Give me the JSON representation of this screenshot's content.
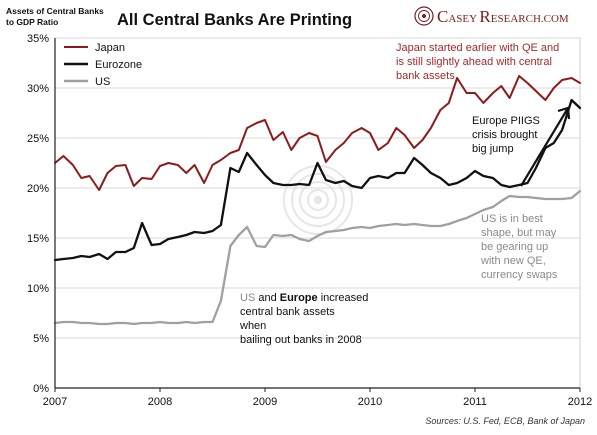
{
  "header": {
    "ylabel_line1": "Assets of Central Banks",
    "ylabel_line2": "to GDP Ratio",
    "title": "All Central Banks Are Printing",
    "brand": {
      "logo_glyph": "C",
      "name_part1": "ASEY ",
      "name_part2": "R",
      "name_part3": "ESEARCH.COM",
      "color": "#7a1f1f"
    },
    "logo_icon": "seal-logo-icon"
  },
  "colors": {
    "japan": "#8e1b1b",
    "eurozone": "#111111",
    "us": "#a0a0a0",
    "grid": "#d9d9d9",
    "axis": "#222222",
    "annotation_japan": "#a52a2a",
    "annotation_us": "#8a8a8a"
  },
  "chart_data": {
    "type": "line",
    "ylabel": "Assets of Central Banks to GDP Ratio",
    "xlim": [
      2007,
      2012
    ],
    "ylim": [
      0,
      35
    ],
    "xticks": [
      "2007",
      "2008",
      "2009",
      "2010",
      "2011",
      "2012"
    ],
    "yticks": [
      "0%",
      "5%",
      "10%",
      "15%",
      "20%",
      "25%",
      "30%",
      "35%"
    ],
    "grid": "horizontal",
    "legend_position": "top-left",
    "series": [
      {
        "name": "Japan",
        "color": "#8e1b1b",
        "x": [
          2007.0,
          2007.08,
          2007.17,
          2007.25,
          2007.33,
          2007.42,
          2007.5,
          2007.58,
          2007.67,
          2007.75,
          2007.83,
          2007.92,
          2008.0,
          2008.08,
          2008.17,
          2008.25,
          2008.33,
          2008.42,
          2008.5,
          2008.58,
          2008.67,
          2008.75,
          2008.83,
          2008.92,
          2009.0,
          2009.08,
          2009.17,
          2009.25,
          2009.33,
          2009.42,
          2009.5,
          2009.58,
          2009.67,
          2009.75,
          2009.83,
          2009.92,
          2010.0,
          2010.08,
          2010.17,
          2010.25,
          2010.33,
          2010.42,
          2010.5,
          2010.58,
          2010.67,
          2010.75,
          2010.83,
          2010.92,
          2011.0,
          2011.08,
          2011.17,
          2011.25,
          2011.33,
          2011.42,
          2011.5,
          2011.58,
          2011.67,
          2011.75,
          2011.83,
          2011.92,
          2012.0
        ],
        "values": [
          22.5,
          23.2,
          22.3,
          21.0,
          21.2,
          19.8,
          21.5,
          22.2,
          22.3,
          20.2,
          21.0,
          20.9,
          22.2,
          22.5,
          22.3,
          21.5,
          22.3,
          20.5,
          22.3,
          22.8,
          23.5,
          23.8,
          26.0,
          26.5,
          26.8,
          24.8,
          25.6,
          23.8,
          25.0,
          25.5,
          25.2,
          22.6,
          23.8,
          24.5,
          25.5,
          26.0,
          25.5,
          23.8,
          24.5,
          26.0,
          25.3,
          24.0,
          24.8,
          26.0,
          27.8,
          28.5,
          31.0,
          29.5,
          29.5,
          28.5,
          29.5,
          30.2,
          29.0,
          31.2,
          30.5,
          29.7,
          28.8,
          30.0,
          30.8,
          31.0,
          30.5
        ]
      },
      {
        "name": "Eurozone",
        "color": "#111111",
        "x": [
          2007.0,
          2007.08,
          2007.17,
          2007.25,
          2007.33,
          2007.42,
          2007.5,
          2007.58,
          2007.67,
          2007.75,
          2007.83,
          2007.92,
          2008.0,
          2008.08,
          2008.17,
          2008.25,
          2008.33,
          2008.42,
          2008.5,
          2008.58,
          2008.67,
          2008.75,
          2008.83,
          2008.92,
          2009.0,
          2009.08,
          2009.17,
          2009.25,
          2009.33,
          2009.42,
          2009.5,
          2009.58,
          2009.67,
          2009.75,
          2009.83,
          2009.92,
          2010.0,
          2010.08,
          2010.17,
          2010.25,
          2010.33,
          2010.42,
          2010.5,
          2010.58,
          2010.67,
          2010.75,
          2010.83,
          2010.92,
          2011.0,
          2011.08,
          2011.17,
          2011.25,
          2011.33,
          2011.42,
          2011.5,
          2011.58,
          2011.67,
          2011.75,
          2011.83,
          2011.92,
          2012.0
        ],
        "values": [
          12.8,
          12.9,
          13.0,
          13.2,
          13.1,
          13.4,
          12.9,
          13.6,
          13.6,
          14.0,
          16.5,
          14.3,
          14.4,
          14.9,
          15.1,
          15.3,
          15.6,
          15.5,
          15.7,
          16.3,
          22.0,
          21.6,
          23.5,
          22.3,
          21.3,
          20.5,
          20.3,
          20.3,
          20.4,
          20.3,
          22.5,
          20.8,
          20.5,
          20.7,
          20.2,
          20.0,
          21.0,
          21.2,
          21.0,
          21.5,
          21.5,
          23.0,
          22.3,
          21.5,
          21.0,
          20.3,
          20.5,
          21.0,
          21.7,
          21.2,
          21.0,
          20.3,
          20.1,
          20.3,
          20.5,
          22.0,
          24.0,
          24.5,
          25.8,
          28.8,
          28.0
        ]
      },
      {
        "name": "US",
        "color": "#a0a0a0",
        "x": [
          2007.0,
          2007.08,
          2007.17,
          2007.25,
          2007.33,
          2007.42,
          2007.5,
          2007.58,
          2007.67,
          2007.75,
          2007.83,
          2007.92,
          2008.0,
          2008.08,
          2008.17,
          2008.25,
          2008.33,
          2008.42,
          2008.5,
          2008.58,
          2008.67,
          2008.75,
          2008.83,
          2008.92,
          2009.0,
          2009.08,
          2009.17,
          2009.25,
          2009.33,
          2009.42,
          2009.5,
          2009.58,
          2009.67,
          2009.75,
          2009.83,
          2009.92,
          2010.0,
          2010.08,
          2010.17,
          2010.25,
          2010.33,
          2010.42,
          2010.5,
          2010.58,
          2010.67,
          2010.75,
          2010.83,
          2010.92,
          2011.0,
          2011.08,
          2011.17,
          2011.25,
          2011.33,
          2011.42,
          2011.5,
          2011.58,
          2011.67,
          2011.75,
          2011.83,
          2011.92,
          2012.0
        ],
        "values": [
          6.5,
          6.6,
          6.6,
          6.5,
          6.5,
          6.4,
          6.4,
          6.5,
          6.5,
          6.4,
          6.5,
          6.5,
          6.6,
          6.5,
          6.5,
          6.6,
          6.5,
          6.6,
          6.6,
          8.7,
          14.2,
          15.3,
          16.1,
          14.2,
          14.1,
          15.3,
          15.2,
          15.3,
          14.9,
          14.7,
          15.2,
          15.6,
          15.7,
          15.8,
          16.0,
          16.1,
          16.0,
          16.2,
          16.3,
          16.4,
          16.3,
          16.4,
          16.3,
          16.2,
          16.2,
          16.4,
          16.7,
          17.0,
          17.4,
          17.8,
          18.1,
          18.7,
          19.2,
          19.1,
          19.1,
          19.0,
          18.9,
          18.9,
          18.9,
          19.0,
          19.7
        ]
      }
    ],
    "annotations": [
      {
        "id": "japan-note",
        "lines": [
          "Japan started earlier with QE and",
          "is still slightly ahead with central",
          "bank assets"
        ]
      },
      {
        "id": "europe-note",
        "lines": [
          "Europe PIIGS",
          "crisis brought",
          "big jump"
        ]
      },
      {
        "id": "us-note",
        "lines": [
          "US is in best",
          "shape, but may",
          "be gearing up",
          "with new QE,",
          "currency swaps"
        ]
      },
      {
        "id": "bailout-note",
        "line1_part1": "US",
        "line1_part2": " and ",
        "line1_part3": "Europe",
        "line1_part4": " increased",
        "line2": "central bank assets",
        "line3": "when",
        "line4": "bailing out banks in 2008"
      }
    ],
    "sources": "Sources:  U.S. Fed, ECB, Bank of Japan"
  }
}
